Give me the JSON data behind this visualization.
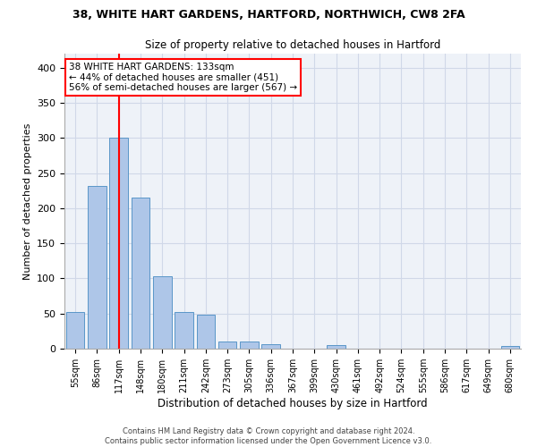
{
  "title1": "38, WHITE HART GARDENS, HARTFORD, NORTHWICH, CW8 2FA",
  "title2": "Size of property relative to detached houses in Hartford",
  "xlabel": "Distribution of detached houses by size in Hartford",
  "ylabel": "Number of detached properties",
  "categories": [
    "55sqm",
    "86sqm",
    "117sqm",
    "148sqm",
    "180sqm",
    "211sqm",
    "242sqm",
    "273sqm",
    "305sqm",
    "336sqm",
    "367sqm",
    "399sqm",
    "430sqm",
    "461sqm",
    "492sqm",
    "524sqm",
    "555sqm",
    "586sqm",
    "617sqm",
    "649sqm",
    "680sqm"
  ],
  "values": [
    52,
    232,
    300,
    215,
    103,
    52,
    49,
    10,
    10,
    6,
    0,
    0,
    5,
    0,
    0,
    0,
    0,
    0,
    0,
    0,
    4
  ],
  "bar_color": "#aec6e8",
  "bar_edge_color": "#5a96c8",
  "annotation_text": "38 WHITE HART GARDENS: 133sqm\n← 44% of detached houses are smaller (451)\n56% of semi-detached houses are larger (567) →",
  "annotation_box_color": "white",
  "annotation_box_edge_color": "red",
  "vline_color": "red",
  "ylim": [
    0,
    420
  ],
  "yticks": [
    0,
    50,
    100,
    150,
    200,
    250,
    300,
    350,
    400
  ],
  "grid_color": "#d0d8e8",
  "bg_color": "#eef2f8",
  "footer": "Contains HM Land Registry data © Crown copyright and database right 2024.\nContains public sector information licensed under the Open Government Licence v3.0."
}
